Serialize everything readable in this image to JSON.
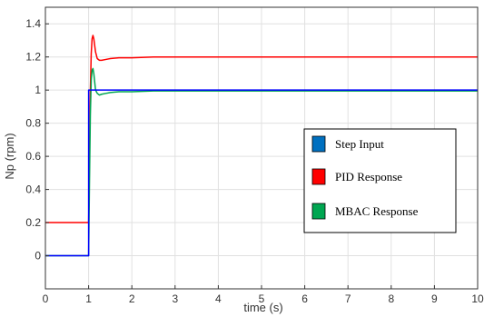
{
  "chart_data": {
    "type": "line",
    "title": "",
    "xlabel": "time (s)",
    "ylabel": "Np (rpm)",
    "xlim": [
      0,
      10
    ],
    "ylim": [
      -0.2,
      1.5
    ],
    "xticks": [
      0,
      1,
      2,
      3,
      4,
      5,
      6,
      7,
      8,
      9,
      10
    ],
    "yticks": [
      0,
      0.2,
      0.4,
      0.6,
      0.8,
      1,
      1.2,
      1.4
    ],
    "xtick_labels": [
      "0",
      "1",
      "2",
      "3",
      "4",
      "5",
      "6",
      "7",
      "8",
      "9",
      "10"
    ],
    "ytick_labels": [
      "0",
      "0.2",
      "0.4",
      "0.6",
      "0.8",
      "1",
      "1.2",
      "1.4"
    ],
    "grid": true,
    "legend_position": "center-right",
    "series": [
      {
        "name": "Step Input",
        "color": "#0000ff",
        "x": [
          0,
          1.0,
          1.0,
          10
        ],
        "y": [
          0,
          0,
          1,
          1
        ]
      },
      {
        "name": "PID Response",
        "color": "#ff0000",
        "x": [
          0,
          1.0,
          1.02,
          1.04,
          1.06,
          1.08,
          1.1,
          1.12,
          1.14,
          1.16,
          1.2,
          1.25,
          1.3,
          1.4,
          1.5,
          1.7,
          2.0,
          2.5,
          3,
          10
        ],
        "y": [
          0.2,
          0.2,
          0.6,
          1.0,
          1.22,
          1.31,
          1.33,
          1.31,
          1.27,
          1.23,
          1.19,
          1.18,
          1.18,
          1.185,
          1.19,
          1.195,
          1.195,
          1.2,
          1.2,
          1.2
        ]
      },
      {
        "name": "MBAC Response",
        "color": "#00a651",
        "x": [
          0,
          1.0,
          1.02,
          1.04,
          1.06,
          1.08,
          1.1,
          1.12,
          1.14,
          1.16,
          1.2,
          1.25,
          1.3,
          1.4,
          1.5,
          1.7,
          2.0,
          2.5,
          3,
          10
        ],
        "y": [
          0,
          0,
          0.45,
          0.85,
          1.06,
          1.12,
          1.13,
          1.1,
          1.05,
          1.0,
          0.98,
          0.97,
          0.975,
          0.98,
          0.985,
          0.99,
          0.99,
          0.995,
          0.995,
          0.995
        ]
      }
    ]
  }
}
